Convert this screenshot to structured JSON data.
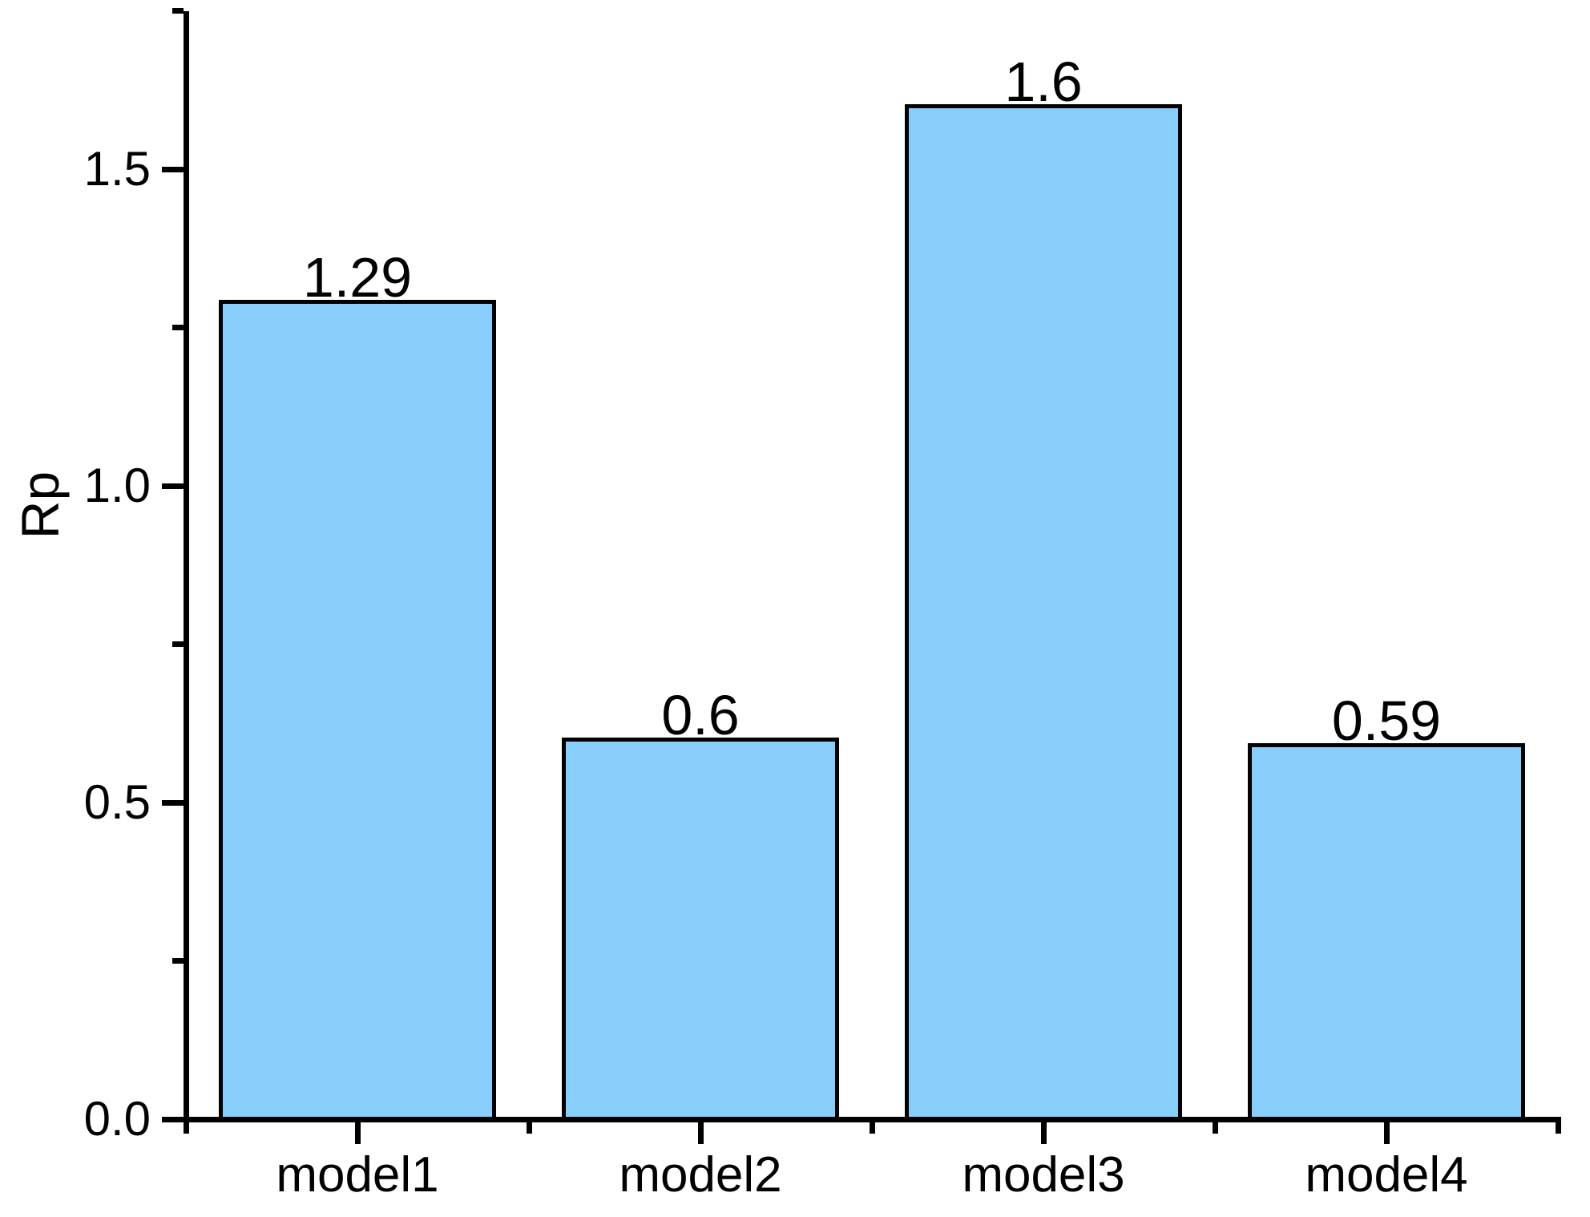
{
  "chart_data": {
    "type": "bar",
    "title": "",
    "ylabel": "Rp",
    "xlabel": "",
    "categories": [
      "model1",
      "model2",
      "model3",
      "model4"
    ],
    "values": [
      1.29,
      0.6,
      1.6,
      0.59
    ],
    "value_labels": [
      "1.29",
      "0.6",
      "1.6",
      "0.59"
    ],
    "ylim": [
      0,
      1.75
    ],
    "yticks_major": [
      0.0,
      0.5,
      1.0,
      1.5
    ],
    "ytick_labels": [
      "0.0",
      "0.5",
      "1.0",
      "1.5"
    ],
    "yticks_minor": [
      0.25,
      0.75,
      1.25,
      1.75
    ],
    "grid": false,
    "legend_position": "none",
    "colors": {
      "bar_fill": "#87CEFA",
      "bar_border": "#000000",
      "axis": "#000000",
      "text": "#000000",
      "background": "#FFFFFF"
    }
  }
}
